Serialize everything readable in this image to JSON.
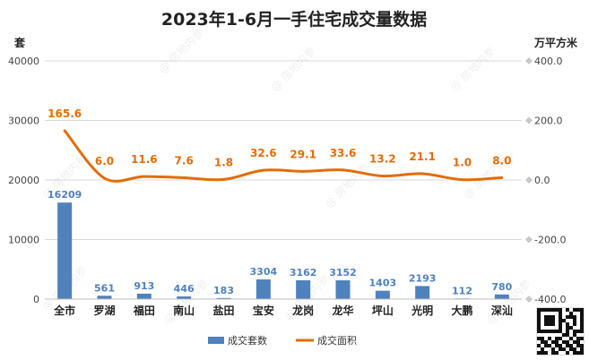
{
  "chart_data": {
    "type": "bar+line",
    "title": "2023年1-6月一手住宅成交量数据",
    "y_left_unit": "套",
    "y_right_unit": "万平方米",
    "categories": [
      "全市",
      "罗湖",
      "福田",
      "南山",
      "盐田",
      "宝安",
      "龙岗",
      "龙华",
      "坪山",
      "光明",
      "大鹏",
      "深汕"
    ],
    "bar_series": {
      "name": "成交套数",
      "values": [
        16209,
        561,
        913,
        446,
        183,
        3304,
        3162,
        3152,
        1403,
        2193,
        112,
        780
      ],
      "color": "#4f81bd"
    },
    "line_series": {
      "name": "成交面积",
      "values": [
        165.6,
        6.0,
        11.6,
        7.6,
        1.8,
        32.6,
        29.1,
        33.6,
        13.2,
        21.1,
        1.0,
        8.0
      ],
      "color": "#e36c09"
    },
    "bar_labels": [
      "16209",
      "561",
      "913",
      "446",
      "183",
      "3304",
      "3162",
      "3152",
      "1403",
      "2193",
      "112",
      "780"
    ],
    "line_labels": [
      "165.6",
      "6.0",
      "11.6",
      "7.6",
      "1.8",
      "32.6",
      "29.1",
      "33.6",
      "13.2",
      "21.1",
      "1.0",
      "8.0"
    ],
    "y_left_ticks": [
      0,
      10000,
      20000,
      30000,
      40000
    ],
    "y_left_tick_labels": [
      "0",
      "10000",
      "20000",
      "30000",
      "40000"
    ],
    "y_left_range": [
      0,
      40000
    ],
    "y_right_ticks": [
      -400,
      -200,
      0,
      200,
      400
    ],
    "y_right_tick_labels": [
      "-400.0",
      "-200.0",
      "0.0",
      "200.0",
      "400.0"
    ],
    "y_right_range": [
      -400,
      400
    ],
    "grid": true,
    "legend_position": "bottom",
    "watermark_text": "@ 房地内参"
  }
}
